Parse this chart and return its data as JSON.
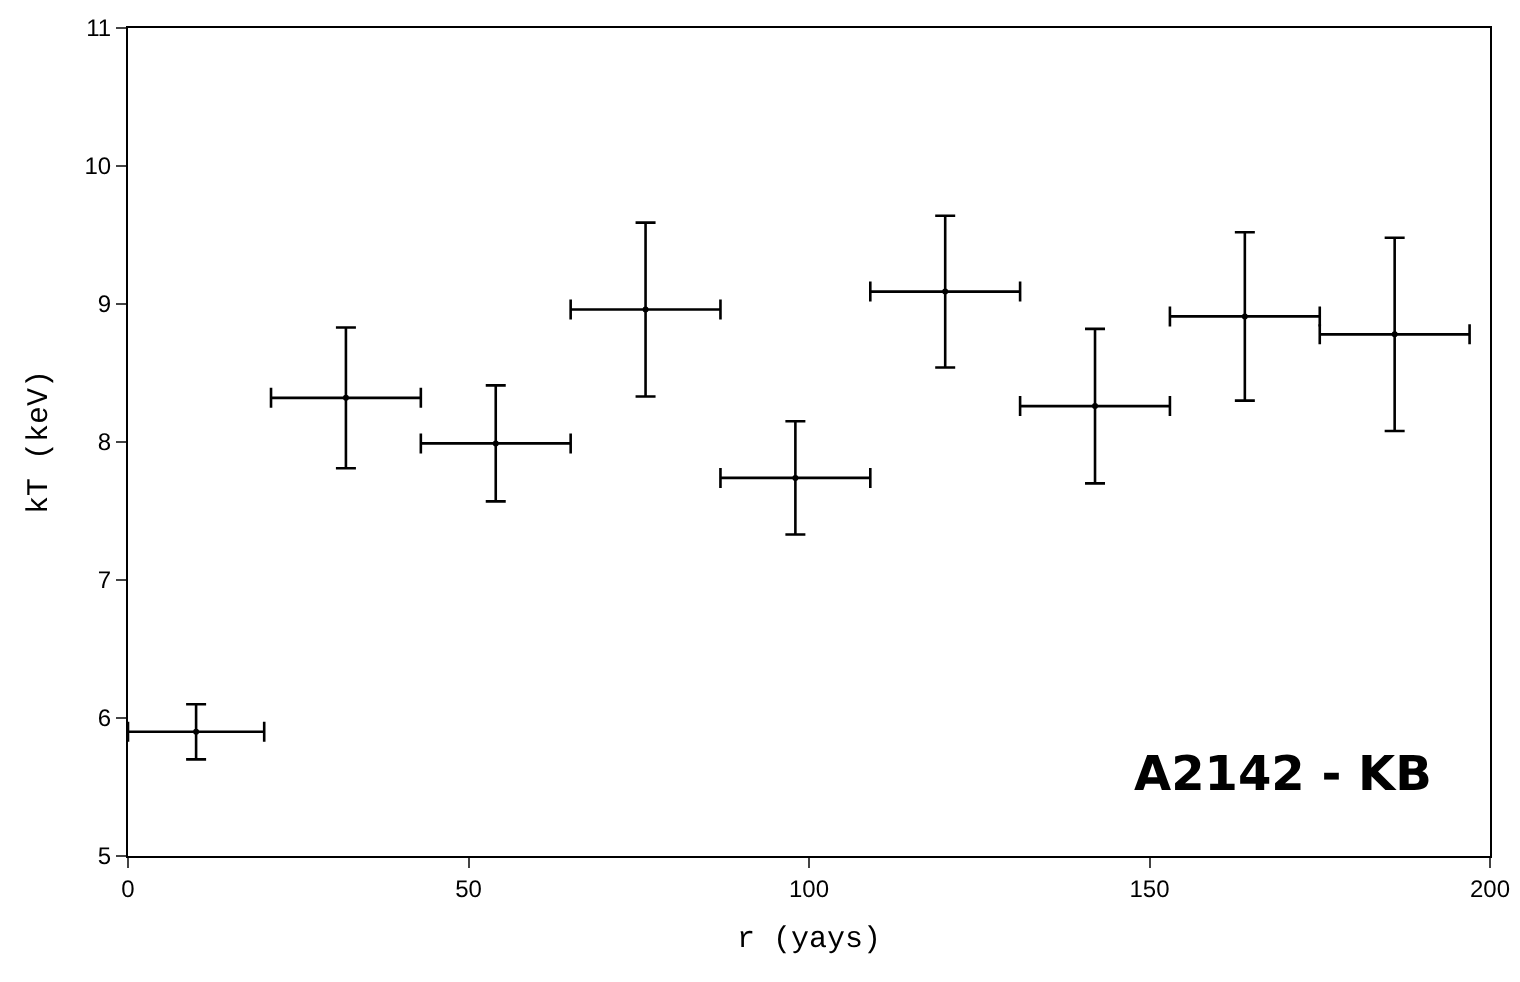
{
  "chart_data": {
    "type": "scatter",
    "xlabel": "r (yays)",
    "ylabel": "kT (keV)",
    "x": [
      10,
      32,
      54,
      76,
      98,
      120,
      142,
      164,
      186
    ],
    "values": [
      5.9,
      8.32,
      7.99,
      8.96,
      7.74,
      9.09,
      8.26,
      8.91,
      8.78
    ],
    "errors": [
      0.2,
      0.51,
      0.42,
      0.63,
      0.41,
      0.55,
      0.56,
      0.61,
      0.7
    ],
    "xerrors": [
      10,
      11,
      11,
      11,
      11,
      11,
      11,
      11,
      11
    ],
    "color": "#000000",
    "marker": "circle",
    "xlim": [
      0,
      200
    ],
    "xticks": [
      0,
      50,
      100,
      150,
      200
    ],
    "ylim": [
      5,
      11
    ],
    "yticks": [
      5,
      6,
      7,
      8,
      9,
      10,
      11
    ],
    "grid": false,
    "annotations": [
      "A2142 - KB"
    ]
  }
}
